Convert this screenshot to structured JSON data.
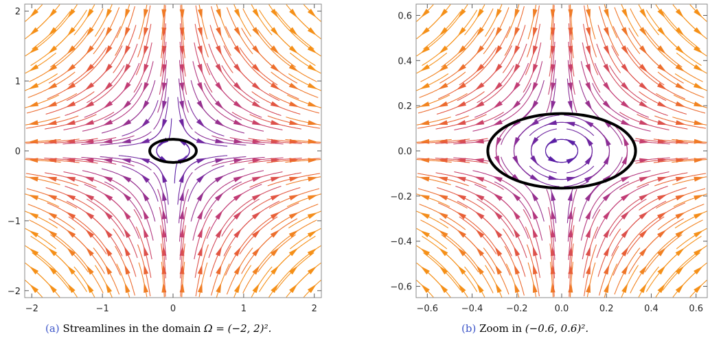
{
  "chart_data": [
    {
      "type": "streamline",
      "panel": "a",
      "xlim": [
        -2.1,
        2.1
      ],
      "ylim": [
        -2.1,
        2.1
      ],
      "xticks": [
        -2,
        -1,
        0,
        1,
        2
      ],
      "yticks": [
        -2,
        -1,
        0,
        1,
        2
      ],
      "xtick_labels": [
        "−2",
        "−1",
        "0",
        "1",
        "2"
      ],
      "ytick_labels": [
        "−2",
        "−1",
        "0",
        "1",
        "2"
      ],
      "ellipse": {
        "cx": 0,
        "cy": 0,
        "rx": 0.33,
        "ry": 0.165
      },
      "grid": false,
      "colormap": [
        "#4a1aa8",
        "#7b2a9e",
        "#c03a78",
        "#e85a3a",
        "#f59018"
      ],
      "caption_sub": "(a)",
      "caption_text": "Streamlines in the domain ",
      "caption_math": "Ω = (−2, 2)²."
    },
    {
      "type": "streamline",
      "panel": "b",
      "xlim": [
        -0.65,
        0.65
      ],
      "ylim": [
        -0.65,
        0.65
      ],
      "xticks": [
        -0.6,
        -0.4,
        -0.2,
        0.0,
        0.2,
        0.4,
        0.6
      ],
      "yticks": [
        -0.6,
        -0.4,
        -0.2,
        0.0,
        0.2,
        0.4,
        0.6
      ],
      "xtick_labels": [
        "−0.6",
        "−0.4",
        "−0.2",
        "0.0",
        "0.2",
        "0.4",
        "0.6"
      ],
      "ytick_labels": [
        "−0.6",
        "−0.4",
        "−0.2",
        "0.0",
        "0.2",
        "0.4",
        "0.6"
      ],
      "ellipse": {
        "cx": 0,
        "cy": 0,
        "rx": 0.33,
        "ry": 0.165
      },
      "grid": false,
      "colormap": [
        "#4a1aa8",
        "#7b2a9e",
        "#c03a78",
        "#e85a3a",
        "#f59018"
      ],
      "caption_sub": "(b)",
      "caption_text": "Zoom in ",
      "caption_math": "(−0.6, 0.6)²."
    }
  ]
}
